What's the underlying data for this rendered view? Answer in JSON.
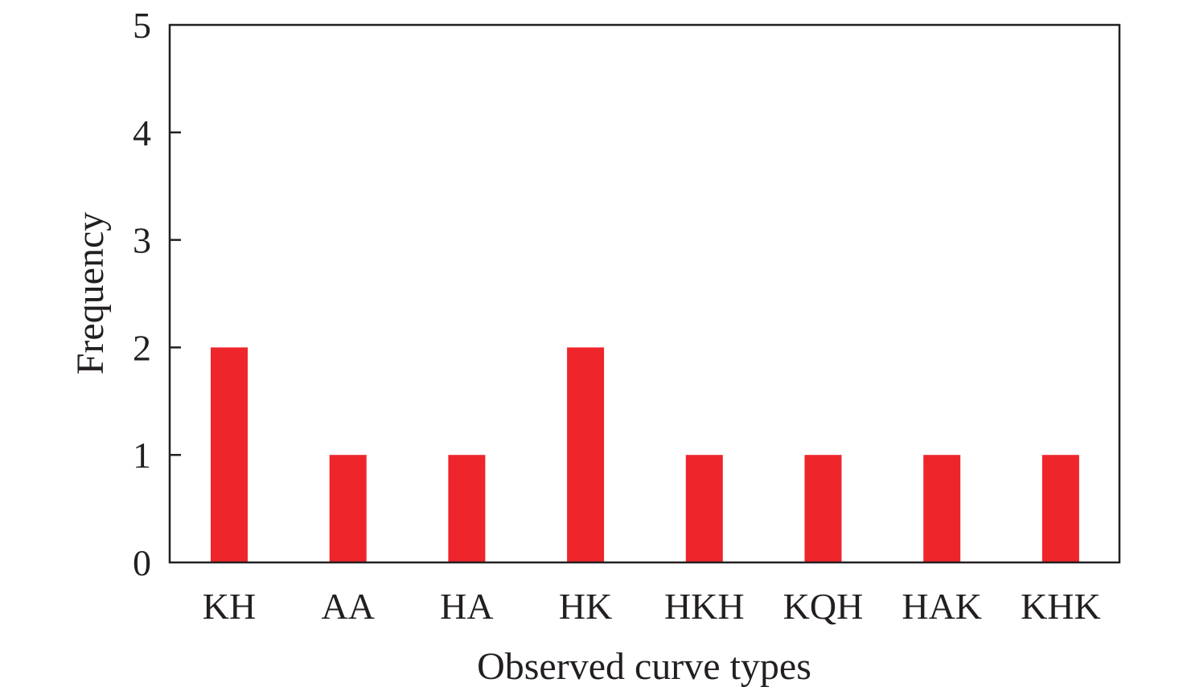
{
  "chart_data": {
    "type": "bar",
    "title": "",
    "xlabel": "Observed curve types",
    "ylabel": "Frequency",
    "categories": [
      "KH",
      "AA",
      "HA",
      "HK",
      "HKH",
      "KQH",
      "HAK",
      "KHK"
    ],
    "values": [
      2,
      1,
      1,
      2,
      1,
      1,
      1,
      1
    ],
    "ylim": [
      0,
      5
    ],
    "yticks": [
      "0",
      "1",
      "2",
      "3",
      "4",
      "5"
    ],
    "grid": false,
    "legend": "none",
    "bar_color": "#ee252b"
  }
}
